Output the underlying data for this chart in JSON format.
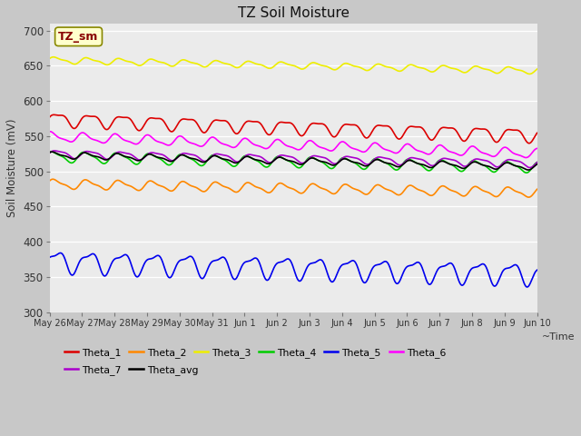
{
  "title": "TZ Soil Moisture",
  "xlabel": "Time",
  "ylabel": "Soil Moisture (mV)",
  "ylim": [
    300,
    710
  ],
  "yticks": [
    300,
    350,
    400,
    450,
    500,
    550,
    600,
    650,
    700
  ],
  "bg_color": "#ebebeb",
  "fig_bg": "#c8c8c8",
  "grid_color": "#ffffff",
  "legend_label": "TZ_sm",
  "series_order": [
    "Theta_1",
    "Theta_2",
    "Theta_3",
    "Theta_4",
    "Theta_5",
    "Theta_6",
    "Theta_7",
    "Theta_avg"
  ],
  "series": {
    "Theta_1": {
      "color": "#dd0000",
      "base": 574,
      "trend": -1.5,
      "amp1": 9,
      "amp2": 3,
      "phase1": 0.0,
      "phase2": 1.5
    },
    "Theta_2": {
      "color": "#ff8800",
      "base": 482,
      "trend": -0.8,
      "amp1": 6,
      "amp2": 2,
      "phase1": 0.5,
      "phase2": 1.0
    },
    "Theta_3": {
      "color": "#eeee00",
      "base": 658,
      "trend": -1.0,
      "amp1": 4,
      "amp2": 1.5,
      "phase1": 0.3,
      "phase2": 0.8
    },
    "Theta_4": {
      "color": "#00cc00",
      "base": 521,
      "trend": -1.0,
      "amp1": 7,
      "amp2": 2,
      "phase1": 0.8,
      "phase2": 2.0
    },
    "Theta_5": {
      "color": "#0000ee",
      "base": 372,
      "trend": -1.2,
      "amp1": 14,
      "amp2": 5,
      "phase1": 0.2,
      "phase2": 2.5
    },
    "Theta_6": {
      "color": "#ff00ff",
      "base": 549,
      "trend": -1.6,
      "amp1": 6,
      "amp2": 2,
      "phase1": 1.2,
      "phase2": 1.8
    },
    "Theta_7": {
      "color": "#aa00cc",
      "base": 525,
      "trend": -0.9,
      "amp1": 5,
      "amp2": 1.5,
      "phase1": 0.0,
      "phase2": 1.0
    },
    "Theta_avg": {
      "color": "#000000",
      "base": 523,
      "trend": -1.1,
      "amp1": 4,
      "amp2": 1.5,
      "phase1": 0.6,
      "phase2": 1.2
    }
  },
  "tick_dates": [
    "May 26",
    "May 27",
    "May 28",
    "May 29",
    "May 30",
    "May 31",
    "Jun 1",
    "Jun 2",
    "Jun 3",
    "Jun 4",
    "Jun 5",
    "Jun 6",
    "Jun 7",
    "Jun 8",
    "Jun 9",
    "Jun 10"
  ],
  "legend_row1": [
    "Theta_1",
    "Theta_2",
    "Theta_3",
    "Theta_4",
    "Theta_5",
    "Theta_6"
  ],
  "legend_row2": [
    "Theta_7",
    "Theta_avg"
  ]
}
